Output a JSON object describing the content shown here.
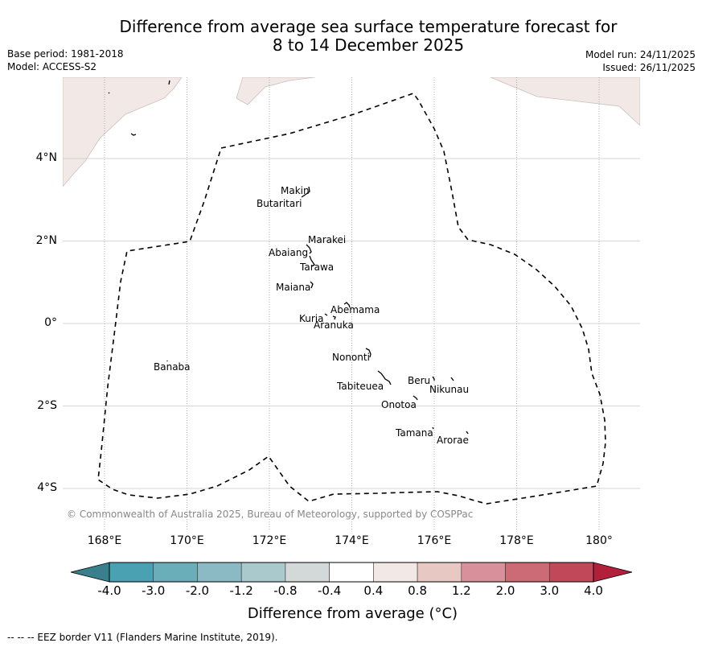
{
  "header": {
    "title_line1": "Difference from average sea surface temperature forecast for",
    "title_line2": "8 to 14 December 2025",
    "base_period": "Base period: 1981-2018",
    "model": "Model: ACCESS-S2",
    "model_run": "Model run: 24/11/2025",
    "issued": "Issued: 26/11/2025"
  },
  "map": {
    "lon_labels": [
      "168°E",
      "170°E",
      "172°E",
      "174°E",
      "176°E",
      "178°E",
      "180°"
    ],
    "lat_labels": [
      "4°N",
      "2°N",
      "0°",
      "2°S",
      "4°S"
    ],
    "lons": [
      168,
      170,
      172,
      174,
      176,
      178,
      180
    ],
    "lats": [
      4,
      2,
      0,
      -2,
      -4
    ],
    "land_color": "#f2e8e6",
    "sea_color": "#ffffff",
    "islands": [
      {
        "name": "Makin",
        "lon": 173.0,
        "lat": 3.2
      },
      {
        "name": "Butaritari",
        "lon": 172.8,
        "lat": 3.05
      },
      {
        "name": "Marakei",
        "lon": 173.3,
        "lat": 2.0
      },
      {
        "name": "Abaiang",
        "lon": 172.9,
        "lat": 1.8
      },
      {
        "name": "Tarawa",
        "lon": 173.0,
        "lat": 1.4
      },
      {
        "name": "Maiana",
        "lon": 173.0,
        "lat": 0.95
      },
      {
        "name": "Abemama",
        "lon": 173.85,
        "lat": 0.4
      },
      {
        "name": "Kuria",
        "lon": 173.4,
        "lat": 0.2
      },
      {
        "name": "Aranuka",
        "lon": 173.6,
        "lat": 0.15
      },
      {
        "name": "Nononti",
        "lon": 174.4,
        "lat": -0.65
      },
      {
        "name": "Banaba",
        "lon": 169.55,
        "lat": -0.85
      },
      {
        "name": "Tabiteuea",
        "lon": 174.9,
        "lat": -1.3
      },
      {
        "name": "Beru",
        "lon": 176.0,
        "lat": -1.35
      },
      {
        "name": "Nikunau",
        "lon": 176.45,
        "lat": -1.35
      },
      {
        "name": "Onotoa",
        "lon": 175.55,
        "lat": -1.8
      },
      {
        "name": "Tamana",
        "lon": 175.98,
        "lat": -2.5
      },
      {
        "name": "Arorae",
        "lon": 176.82,
        "lat": -2.65
      }
    ],
    "copyright": "© Commonwealth of Australia 2025, Bureau of Meteorology, supported by COSPPac"
  },
  "colorbar": {
    "ticks": [
      "-4.0",
      "-3.0",
      "-2.0",
      "-1.2",
      "-0.8",
      "-0.4",
      "0.4",
      "0.8",
      "1.2",
      "2.0",
      "3.0",
      "4.0"
    ],
    "under_color": "#3a7f8c",
    "over_color": "#b11f3b",
    "colors": [
      "#4aa1b1",
      "#6aaeba",
      "#8bbac5",
      "#a9c9cd",
      "#d3d9d9",
      "#ffffff",
      "#f2e8e6",
      "#e8c8c3",
      "#d8919a",
      "#cc6b75",
      "#c14858"
    ],
    "label": "Difference from average (°C)"
  },
  "footer": {
    "eez_note": "--  --  -- EEZ border V11 (Flanders Marine Institute, 2019)."
  }
}
